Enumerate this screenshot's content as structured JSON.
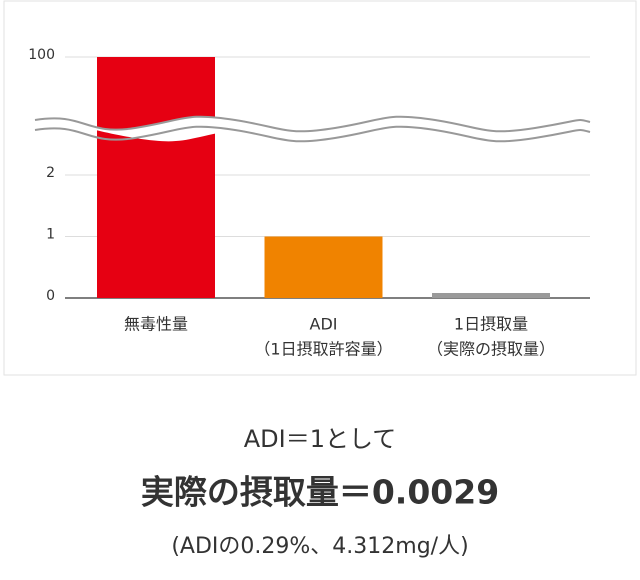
{
  "chart_data": {
    "type": "bar",
    "categories": [
      [
        "無毒性量"
      ],
      [
        "ADI",
        "（1日摂取許容量）"
      ],
      [
        "1日摂取量",
        "（実際の摂取量）"
      ]
    ],
    "values": [
      100,
      1,
      0.0029
    ],
    "colors": [
      "#e60012",
      "#f08300",
      "#9a9a9a"
    ],
    "ylim": [
      0,
      100
    ],
    "yticks": [
      0,
      1,
      2,
      100
    ],
    "grid": true,
    "axis_break": true,
    "annotations": [
      "ADI＝1として",
      "実際の摂取量＝0.0029",
      "(ADIの0.29%、4.312mg/人)"
    ]
  }
}
